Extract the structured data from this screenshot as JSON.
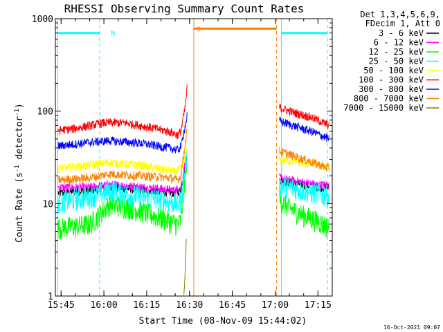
{
  "chart_data": {
    "type": "line",
    "title": "RHESSI Observing Summary Count Rates",
    "xlabel": "Start Time (08-Nov-09 15:44:02)",
    "ylabel_main": "Count Rate (s",
    "ylabel_sup1": "-1",
    "ylabel_mid": " detector",
    "ylabel_sup2": "-1",
    "ylabel_end": ")",
    "ylabel_full": "Count Rate (s-1 detector-1)",
    "y_scale": "log",
    "ylim": [
      1,
      1000
    ],
    "y_ticks": [
      {
        "v": 1,
        "label": "1"
      },
      {
        "v": 10,
        "label": "10"
      },
      {
        "v": 100,
        "label": "100"
      },
      {
        "v": 1000,
        "label": "1000"
      }
    ],
    "xlim_minutes": [
      -2,
      95
    ],
    "x_ticks": [
      {
        "m": 0,
        "label": "15:45"
      },
      {
        "m": 15,
        "label": "16:00"
      },
      {
        "m": 30,
        "label": "16:15"
      },
      {
        "m": 45,
        "label": "16:30"
      },
      {
        "m": 60,
        "label": "16:45"
      },
      {
        "m": 75,
        "label": "17:00"
      },
      {
        "m": 90,
        "label": "17:15"
      }
    ],
    "legend_header": [
      "Det 1,3,4,5,6,9,",
      "FDecim 1, Att 0"
    ],
    "legend_placement": "right-outside",
    "series": [
      {
        "name": "3 - 6 keV",
        "color": "#000000",
        "pre": [
          [
            -1,
            13
          ],
          [
            10,
            14
          ],
          [
            17,
            15
          ],
          [
            30,
            14
          ],
          [
            40,
            13
          ],
          [
            42,
            14
          ],
          [
            44,
            30
          ]
        ],
        "post": [
          [
            76.5,
            18
          ],
          [
            80,
            17
          ],
          [
            90,
            15
          ],
          [
            94,
            15
          ]
        ]
      },
      {
        "name": "6 - 12 keV",
        "color": "#ff00ff",
        "pre": [
          [
            -1,
            15
          ],
          [
            10,
            15
          ],
          [
            17,
            16
          ],
          [
            30,
            15
          ],
          [
            40,
            14
          ],
          [
            42,
            15
          ],
          [
            44,
            35
          ]
        ],
        "post": [
          [
            76.5,
            19
          ],
          [
            80,
            18
          ],
          [
            90,
            16
          ],
          [
            94,
            16
          ]
        ]
      },
      {
        "name": "12 - 25 keV",
        "color": "#00ff00",
        "pre": [
          [
            -1,
            5.5
          ],
          [
            10,
            6
          ],
          [
            17,
            10
          ],
          [
            25,
            9
          ],
          [
            35,
            7
          ],
          [
            41,
            6
          ],
          [
            42,
            6.5
          ],
          [
            44,
            30
          ]
        ],
        "post": [
          [
            76.5,
            11
          ],
          [
            80,
            9
          ],
          [
            85,
            7.5
          ],
          [
            90,
            6.5
          ],
          [
            94,
            5.5
          ]
        ]
      },
      {
        "name": "25 - 50 keV",
        "color": "#00ffff",
        "pre": [
          [
            -1,
            10.5
          ],
          [
            10,
            12
          ],
          [
            17,
            14
          ],
          [
            28,
            12
          ],
          [
            36,
            11
          ],
          [
            41,
            10
          ],
          [
            42,
            11
          ],
          [
            44,
            30
          ]
        ],
        "post": [
          [
            76.5,
            16
          ],
          [
            80,
            15
          ],
          [
            90,
            13
          ],
          [
            94,
            12
          ]
        ]
      },
      {
        "name": "50 - 100 keV",
        "color": "#ffff00",
        "pre": [
          [
            -1,
            24
          ],
          [
            10,
            26
          ],
          [
            17,
            28
          ],
          [
            28,
            26
          ],
          [
            40,
            22
          ],
          [
            42,
            24
          ],
          [
            44,
            38
          ]
        ],
        "post": [
          [
            76.5,
            30
          ],
          [
            80,
            29
          ],
          [
            90,
            26
          ],
          [
            94,
            25
          ]
        ]
      },
      {
        "name": "100 - 300 keV",
        "color": "#ff0000",
        "pre": [
          [
            -1,
            62
          ],
          [
            5,
            65
          ],
          [
            15,
            75
          ],
          [
            22,
            75
          ],
          [
            30,
            68
          ],
          [
            38,
            60
          ],
          [
            41,
            55
          ],
          [
            42,
            62
          ],
          [
            43.5,
            110
          ],
          [
            44.3,
            200
          ]
        ],
        "post": [
          [
            76.5,
            110
          ],
          [
            80,
            100
          ],
          [
            88,
            85
          ],
          [
            94,
            70
          ]
        ]
      },
      {
        "name": "300 - 800 keV",
        "color": "#0000ff",
        "pre": [
          [
            -1,
            42
          ],
          [
            10,
            46
          ],
          [
            17,
            48
          ],
          [
            28,
            45
          ],
          [
            38,
            40
          ],
          [
            41,
            38
          ],
          [
            42,
            42
          ],
          [
            43.5,
            70
          ],
          [
            44.3,
            95
          ]
        ],
        "post": [
          [
            76.5,
            78
          ],
          [
            80,
            72
          ],
          [
            88,
            60
          ],
          [
            94,
            50
          ]
        ]
      },
      {
        "name": "800 - 7000 keV",
        "color": "#ff8000",
        "pre": [
          [
            -1,
            18
          ],
          [
            10,
            19
          ],
          [
            17,
            21
          ],
          [
            28,
            20
          ],
          [
            38,
            19
          ],
          [
            41,
            18
          ],
          [
            42,
            20
          ],
          [
            44,
            60
          ]
        ],
        "post": [
          [
            76.5,
            37
          ],
          [
            80,
            34
          ],
          [
            88,
            28
          ],
          [
            94,
            24
          ]
        ]
      },
      {
        "name": "7000 - 15000 keV",
        "color": "#808000",
        "pre": [
          [
            43,
            1
          ],
          [
            43.5,
            2
          ],
          [
            44,
            5
          ]
        ],
        "post": []
      }
    ],
    "intervals": [
      {
        "label": "N",
        "color": "#00ffff",
        "start": -1.2,
        "end": 13.5,
        "level": 700,
        "boundaries": [
          [
            -1.2,
            "solid"
          ],
          [
            13.5,
            "dashed"
          ]
        ]
      },
      {
        "label": "S",
        "color": "#ff8000",
        "start": 46.5,
        "end": 75.5,
        "level": 780,
        "boundaries": [
          [
            46.5,
            "solid"
          ],
          [
            75.5,
            "dashed"
          ]
        ]
      },
      {
        "label": "",
        "color": "#00ffff",
        "start": 77.2,
        "end": 93.3,
        "level": 700,
        "boundaries": [
          [
            77.2,
            "solid"
          ],
          [
            93.3,
            "dashed"
          ]
        ]
      }
    ]
  },
  "footer_timestamp": "16-Oct-2021 09:07"
}
